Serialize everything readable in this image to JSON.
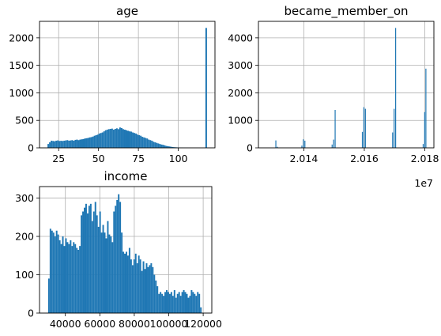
{
  "figure": {
    "bar_color": "#1f77b4",
    "grid_color": "#b0b0b0",
    "grid": true
  },
  "chart_data": [
    {
      "type": "bar",
      "title": "age",
      "xlim": [
        13.0,
        123.0
      ],
      "ylim": [
        0,
        2300
      ],
      "xticks": [
        25,
        50,
        75,
        100
      ],
      "xtick_labels": [
        "25",
        "50",
        "75",
        "100"
      ],
      "yticks": [
        0,
        500,
        1000,
        1500,
        2000
      ],
      "ytick_labels": [
        "0",
        "500",
        "1000",
        "1500",
        "2000"
      ],
      "bin_start": 18,
      "bin_width": 1.0,
      "values": [
        70,
        100,
        130,
        125,
        120,
        130,
        135,
        125,
        128,
        125,
        130,
        135,
        140,
        130,
        135,
        140,
        130,
        145,
        150,
        140,
        150,
        155,
        160,
        170,
        175,
        180,
        190,
        195,
        205,
        220,
        230,
        240,
        260,
        270,
        280,
        300,
        320,
        330,
        340,
        345,
        350,
        330,
        345,
        355,
        340,
        370,
        360,
        340,
        330,
        320,
        310,
        300,
        295,
        280,
        270,
        260,
        240,
        230,
        220,
        200,
        190,
        180,
        170,
        150,
        140,
        130,
        110,
        100,
        90,
        80,
        70,
        60,
        55,
        45,
        35,
        30,
        25,
        20,
        15,
        12,
        10,
        8,
        6,
        5,
        4,
        3,
        2,
        2,
        1,
        1,
        0,
        0,
        0,
        0,
        0,
        0,
        0,
        0,
        0,
        2180
      ],
      "xlabel": "",
      "ylabel": ""
    },
    {
      "type": "bar",
      "title": "became_member_on",
      "xlim": [
        20125000,
        20183000
      ],
      "ylim": [
        0,
        4600
      ],
      "xticks": [
        20140000,
        20160000,
        20180000
      ],
      "xtick_labels": [
        "2.014",
        "2.016",
        "2.018"
      ],
      "offset_label": "1e7",
      "yticks": [
        0,
        1000,
        2000,
        3000,
        4000
      ],
      "ytick_labels": [
        "0",
        "1000",
        "2000",
        "3000",
        "4000"
      ],
      "bars": [
        {
          "x": 20130700,
          "v": 270
        },
        {
          "x": 20131200,
          "v": 40
        },
        {
          "x": 20139300,
          "v": 80
        },
        {
          "x": 20139800,
          "v": 310
        },
        {
          "x": 20140300,
          "v": 260
        },
        {
          "x": 20149300,
          "v": 120
        },
        {
          "x": 20149800,
          "v": 300
        },
        {
          "x": 20150300,
          "v": 1380
        },
        {
          "x": 20159300,
          "v": 580
        },
        {
          "x": 20159800,
          "v": 1480
        },
        {
          "x": 20160300,
          "v": 1420
        },
        {
          "x": 20169300,
          "v": 560
        },
        {
          "x": 20169800,
          "v": 1420
        },
        {
          "x": 20170300,
          "v": 4360
        },
        {
          "x": 20179400,
          "v": 140
        },
        {
          "x": 20179900,
          "v": 1300
        },
        {
          "x": 20180300,
          "v": 2880
        }
      ],
      "bar_width": 200,
      "xlabel": "",
      "ylabel": ""
    },
    {
      "type": "bar",
      "title": "income",
      "xlim": [
        25000,
        125000
      ],
      "ylim": [
        0,
        330
      ],
      "xticks": [
        40000,
        60000,
        80000,
        100000,
        120000
      ],
      "xtick_labels": [
        "40000",
        "60000",
        "80000",
        "100000",
        "120000"
      ],
      "yticks": [
        0,
        100,
        200,
        300
      ],
      "ytick_labels": [
        "0",
        "100",
        "200",
        "300"
      ],
      "bin_start": 30000,
      "bin_width": 900,
      "values": [
        90,
        220,
        215,
        210,
        200,
        215,
        205,
        190,
        180,
        200,
        175,
        195,
        185,
        180,
        190,
        175,
        185,
        180,
        170,
        165,
        175,
        255,
        265,
        275,
        285,
        260,
        280,
        285,
        240,
        265,
        290,
        255,
        225,
        265,
        210,
        230,
        210,
        195,
        240,
        205,
        200,
        185,
        265,
        280,
        295,
        310,
        290,
        210,
        160,
        155,
        160,
        150,
        170,
        140,
        125,
        140,
        155,
        130,
        150,
        140,
        110,
        135,
        115,
        130,
        120,
        125,
        130,
        120,
        100,
        85,
        70,
        50,
        55,
        50,
        45,
        55,
        60,
        55,
        50,
        55,
        45,
        60,
        40,
        50,
        55,
        45,
        55,
        60,
        55,
        50,
        40,
        45,
        60,
        55,
        50,
        45,
        55,
        50,
        15
      ],
      "xlabel": "",
      "ylabel": ""
    }
  ]
}
